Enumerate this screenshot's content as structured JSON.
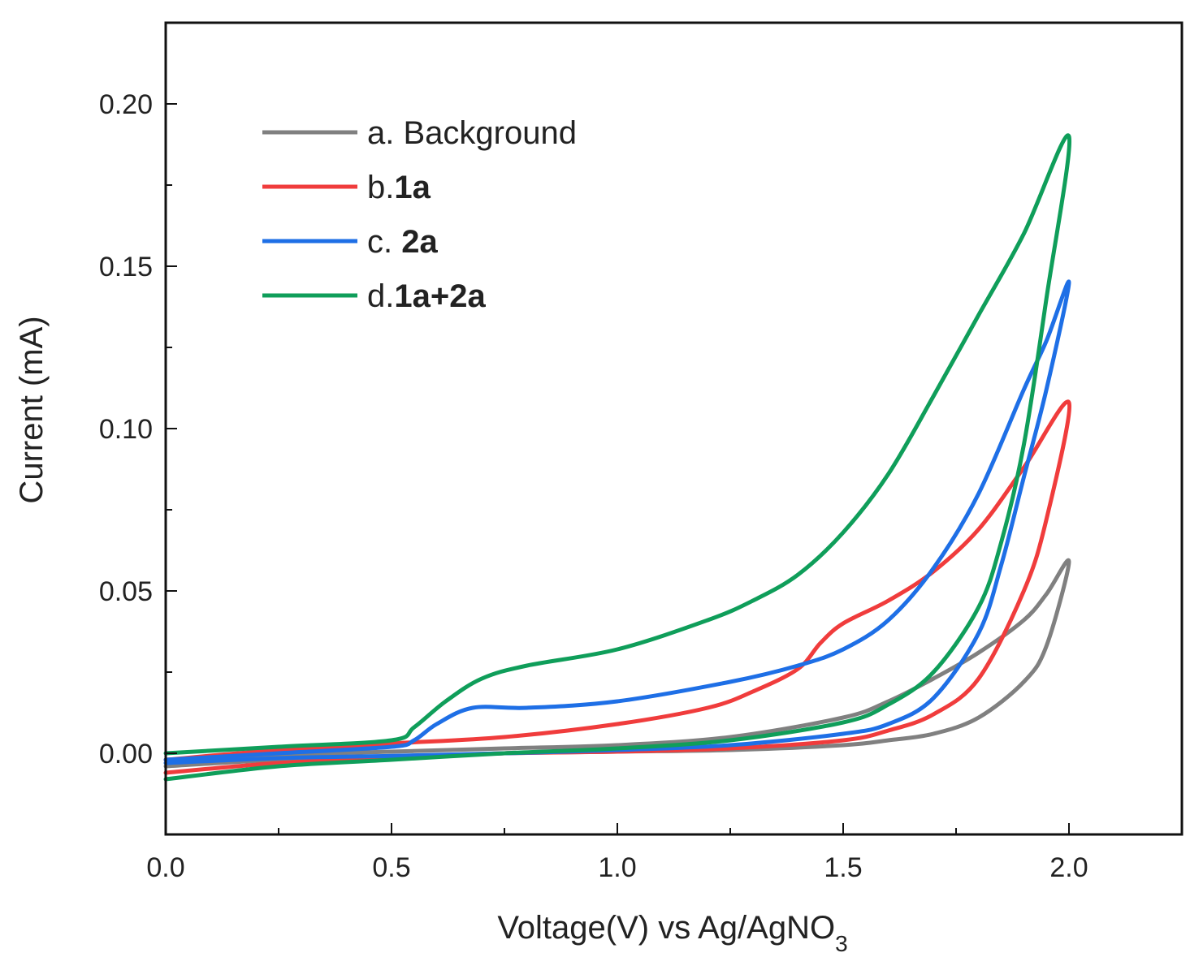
{
  "chart_data": {
    "type": "line",
    "title": "",
    "xlabel": "Voltage(V) vs Ag/AgNO",
    "xlabel_subscript": "3",
    "ylabel": "Current (mA)",
    "xlim": [
      0.0,
      2.25
    ],
    "ylim": [
      -0.025,
      0.225
    ],
    "xticks": [
      0.0,
      0.5,
      1.0,
      1.5,
      2.0
    ],
    "xtick_labels": [
      "0.0",
      "0.5",
      "1.0",
      "1.5",
      "2.0"
    ],
    "yticks": [
      0.0,
      0.05,
      0.1,
      0.15,
      0.2
    ],
    "ytick_labels": [
      "0.00",
      "0.05",
      "0.10",
      "0.15",
      "0.20"
    ],
    "grid": false,
    "legend_position": "top-left",
    "series": [
      {
        "name": "a. Background",
        "legend_prefix": "a. ",
        "legend_bold": "Background",
        "bold": false,
        "color": "#808080",
        "x": [
          0.0,
          0.25,
          0.5,
          0.75,
          1.0,
          1.25,
          1.5,
          1.6,
          1.7,
          1.8,
          1.9,
          1.95,
          2.0,
          1.95,
          1.9,
          1.8,
          1.7,
          1.6,
          1.5,
          1.25,
          1.0,
          0.75,
          0.5,
          0.25,
          0.0
        ],
        "y": [
          -0.004,
          -0.002,
          -0.001,
          0.0,
          0.0005,
          0.001,
          0.0025,
          0.004,
          0.006,
          0.011,
          0.022,
          0.033,
          0.059,
          0.049,
          0.041,
          0.031,
          0.023,
          0.016,
          0.011,
          0.005,
          0.0025,
          0.0015,
          0.0005,
          -0.0005,
          -0.002
        ]
      },
      {
        "name": "b.1a",
        "legend_prefix": "b.",
        "legend_bold": "1a",
        "bold": true,
        "color": "#f03c3c",
        "x": [
          0.0,
          0.25,
          0.5,
          0.75,
          1.0,
          1.25,
          1.5,
          1.6,
          1.7,
          1.8,
          1.9,
          1.95,
          2.0,
          1.9,
          1.8,
          1.7,
          1.6,
          1.5,
          1.45,
          1.4,
          1.3,
          1.2,
          1.0,
          0.75,
          0.5,
          0.25,
          0.0
        ],
        "y": [
          -0.006,
          -0.003,
          -0.0015,
          0.0,
          0.0005,
          0.0015,
          0.004,
          0.007,
          0.012,
          0.023,
          0.05,
          0.072,
          0.108,
          0.088,
          0.069,
          0.056,
          0.047,
          0.04,
          0.034,
          0.026,
          0.019,
          0.014,
          0.009,
          0.005,
          0.003,
          0.001,
          -0.002
        ]
      },
      {
        "name": "c. 2a",
        "legend_prefix": "c. ",
        "legend_bold": "2a",
        "bold": true,
        "color": "#1e6fe6",
        "x": [
          0.0,
          0.25,
          0.5,
          0.75,
          1.0,
          1.25,
          1.5,
          1.6,
          1.7,
          1.8,
          1.85,
          1.9,
          1.95,
          2.0,
          1.95,
          1.9,
          1.8,
          1.7,
          1.6,
          1.5,
          1.4,
          1.25,
          1.0,
          0.8,
          0.68,
          0.6,
          0.55,
          0.5,
          0.25,
          0.0
        ],
        "y": [
          -0.003,
          -0.0015,
          -0.0008,
          0.0,
          0.001,
          0.0025,
          0.006,
          0.009,
          0.017,
          0.037,
          0.058,
          0.085,
          0.112,
          0.145,
          0.127,
          0.112,
          0.08,
          0.057,
          0.041,
          0.032,
          0.027,
          0.022,
          0.016,
          0.014,
          0.014,
          0.009,
          0.004,
          0.002,
          0.0,
          -0.002
        ]
      },
      {
        "name": "d.1a+2a",
        "legend_prefix": "d.",
        "legend_bold": "1a+2a",
        "bold": true,
        "color": "#0f9e5a",
        "x": [
          0.0,
          0.25,
          0.5,
          0.75,
          1.0,
          1.25,
          1.5,
          1.6,
          1.7,
          1.8,
          1.85,
          1.9,
          1.95,
          2.0,
          1.9,
          1.8,
          1.7,
          1.6,
          1.5,
          1.4,
          1.3,
          1.2,
          1.0,
          0.8,
          0.7,
          0.62,
          0.55,
          0.5,
          0.25,
          0.0
        ],
        "y": [
          -0.008,
          -0.004,
          -0.002,
          0.0,
          0.0015,
          0.004,
          0.0095,
          0.015,
          0.025,
          0.045,
          0.065,
          0.095,
          0.14,
          0.19,
          0.16,
          0.135,
          0.11,
          0.086,
          0.068,
          0.055,
          0.047,
          0.041,
          0.032,
          0.027,
          0.023,
          0.016,
          0.008,
          0.004,
          0.002,
          0.0
        ]
      }
    ]
  }
}
